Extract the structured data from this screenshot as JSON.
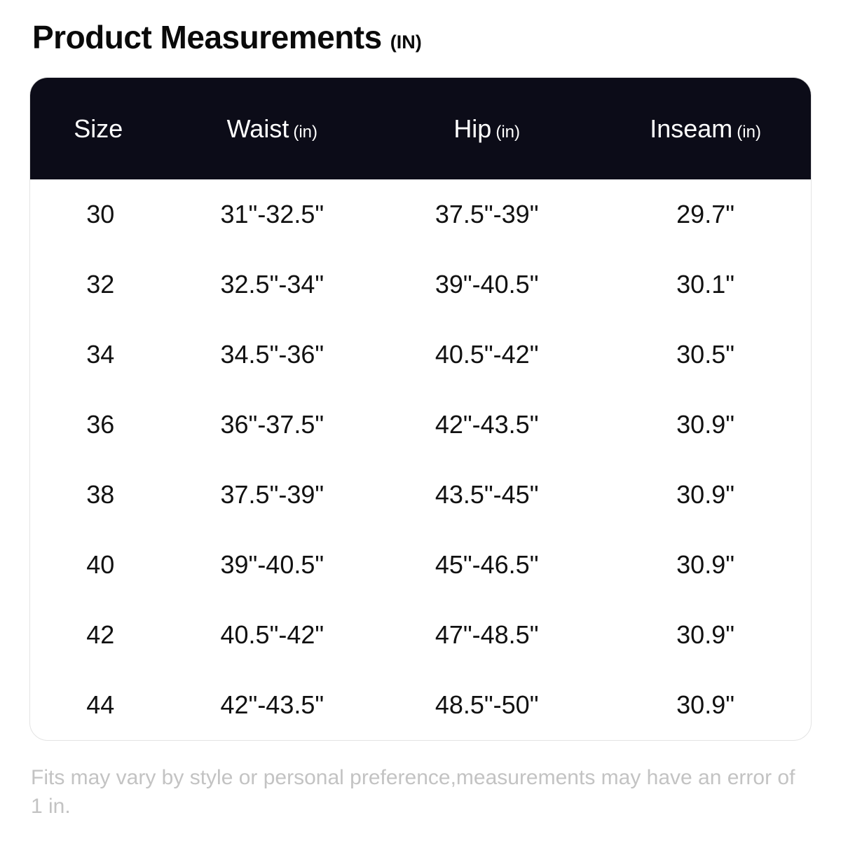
{
  "page": {
    "title": "Product Measurements",
    "title_unit": "(IN)",
    "footnote": "Fits may vary by style or personal preference,measurements may have an error of 1 in."
  },
  "colors": {
    "header_bg": "#0c0c18",
    "header_text": "#ffffff",
    "body_text": "#111111",
    "footnote_text": "#c3c3c3",
    "table_border": "#e3e3e3"
  },
  "chart_data": {
    "type": "table",
    "title": "Product Measurements (IN)",
    "columns": [
      {
        "key": "size",
        "label": "Size",
        "unit": ""
      },
      {
        "key": "waist",
        "label": "Waist",
        "unit": "(in)"
      },
      {
        "key": "hip",
        "label": "Hip",
        "unit": "(in)"
      },
      {
        "key": "inseam",
        "label": "Inseam",
        "unit": "(in)"
      }
    ],
    "rows": [
      [
        "30",
        "31\"-32.5\"",
        "37.5\"-39\"",
        "29.7\""
      ],
      [
        "32",
        "32.5\"-34\"",
        "39\"-40.5\"",
        "30.1\""
      ],
      [
        "34",
        "34.5\"-36\"",
        "40.5\"-42\"",
        "30.5\""
      ],
      [
        "36",
        "36\"-37.5\"",
        "42\"-43.5\"",
        "30.9\""
      ],
      [
        "38",
        "37.5\"-39\"",
        "43.5\"-45\"",
        "30.9\""
      ],
      [
        "40",
        "39\"-40.5\"",
        "45\"-46.5\"",
        "30.9\""
      ],
      [
        "42",
        "40.5\"-42\"",
        "47\"-48.5\"",
        "30.9\""
      ],
      [
        "44",
        "42\"-43.5\"",
        "48.5\"-50\"",
        "30.9\""
      ]
    ]
  }
}
